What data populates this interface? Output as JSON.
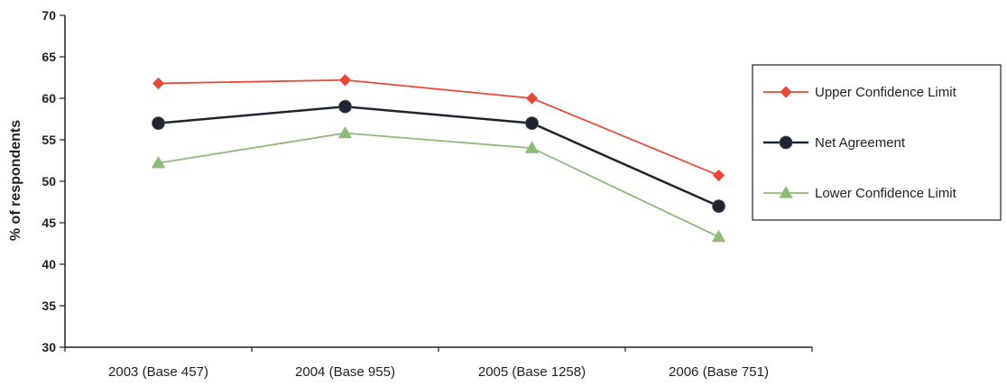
{
  "chart_data": {
    "type": "line",
    "title": "",
    "xlabel": "",
    "ylabel": "% of respondents",
    "ylim": [
      30,
      70
    ],
    "yticks": [
      30,
      35,
      40,
      45,
      50,
      55,
      60,
      65,
      70
    ],
    "categories": [
      "2003 (Base 457)",
      "2004 (Base 955)",
      "2005 (Base 1258)",
      "2006 (Base 751)"
    ],
    "grid": false,
    "legend_position": "right",
    "series": [
      {
        "name": "Upper Confidence Limit",
        "values": [
          61.8,
          62.2,
          60.0,
          50.7
        ],
        "color": "#e8483a",
        "marker": "diamond"
      },
      {
        "name": "Net Agreement",
        "values": [
          57.0,
          59.0,
          57.0,
          47.0
        ],
        "color": "#1f2530",
        "marker": "circle"
      },
      {
        "name": "Lower Confidence Limit",
        "values": [
          52.2,
          55.8,
          54.0,
          43.3
        ],
        "color": "#8dbb78",
        "marker": "triangle"
      }
    ]
  }
}
